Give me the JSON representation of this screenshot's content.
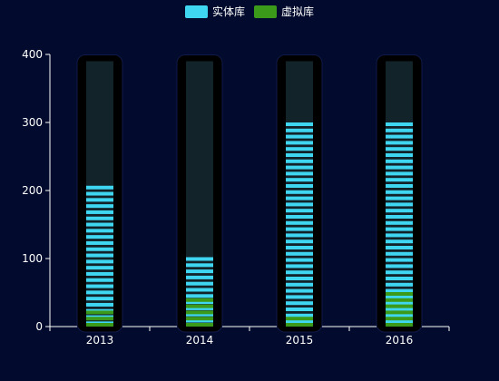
{
  "chart_data": {
    "type": "bar",
    "categories": [
      "2013",
      "2014",
      "2015",
      "2016"
    ],
    "series": [
      {
        "name": "实体库",
        "color": "#3fd6f2",
        "values": [
          207,
          102,
          300,
          300
        ]
      },
      {
        "name": "虚拟库",
        "color": "#3c9a1b",
        "values": [
          30,
          45,
          20,
          55
        ]
      }
    ],
    "background_max": 390,
    "ylim": [
      0,
      400
    ],
    "yticks": [
      0,
      100,
      200,
      300,
      400
    ],
    "legend_position": "top-center",
    "grid": false,
    "bar_style": "segmented pictorial columns",
    "capsule_color": "#000000",
    "track_color": "#13232a",
    "axis_color": "#ffffff",
    "background_color": "#020b2d"
  }
}
